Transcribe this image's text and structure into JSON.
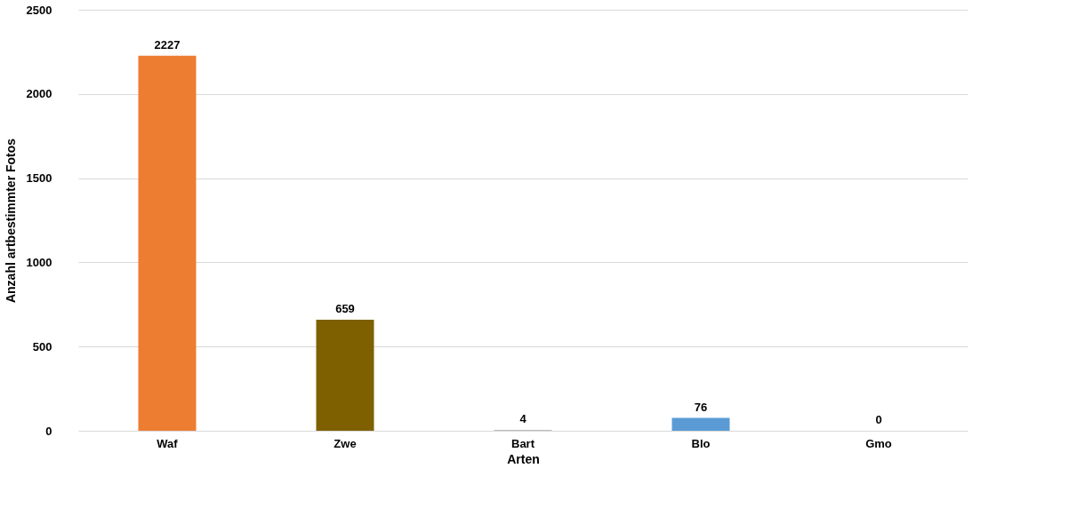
{
  "chart_data": {
    "type": "bar",
    "xlabel": "Arten",
    "ylabel": "Anzahl artbestimmter Fotos",
    "categories": [
      "Waf",
      "Zwe",
      "Bart",
      "Blo",
      "Gmo"
    ],
    "values": [
      2227,
      659,
      4,
      76,
      0
    ],
    "colors": [
      "#ed7d31",
      "#7f6000",
      "#a5a5a5",
      "#5b9bd5",
      "#ffc000"
    ],
    "ylim": [
      0,
      2500
    ],
    "yticks": [
      0,
      500,
      1000,
      1500,
      2000,
      2500
    ],
    "grid": "y",
    "data_labels": true
  }
}
